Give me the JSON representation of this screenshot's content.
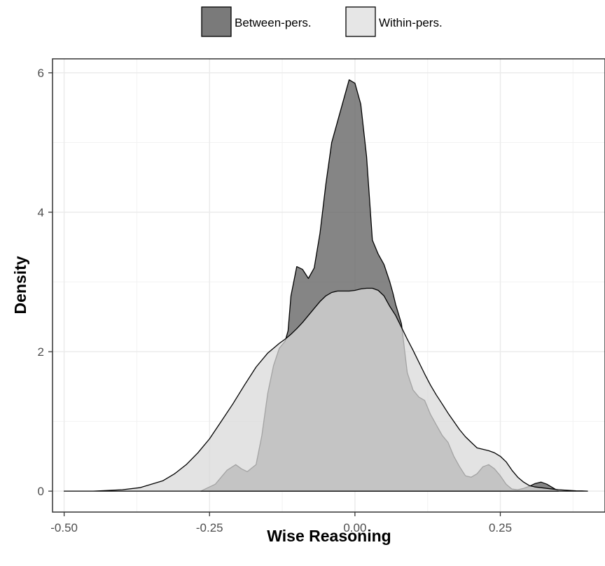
{
  "chart_data": {
    "type": "area",
    "title": "",
    "xlabel": "Wise Reasoning",
    "ylabel": "Density",
    "xlim": [
      -0.52,
      0.43
    ],
    "ylim": [
      -0.3,
      6.2
    ],
    "x_ticks": [
      -0.5,
      -0.25,
      0.0,
      0.25
    ],
    "x_tick_labels": [
      "-0.50",
      "-0.25",
      "0.00",
      "0.25"
    ],
    "y_ticks": [
      0,
      2,
      4,
      6
    ],
    "y_tick_labels": [
      "0",
      "2",
      "4",
      "6"
    ],
    "grid": true,
    "legend_position": "top",
    "series": [
      {
        "name": "Between-pers.",
        "color": "#666666",
        "opacity": 0.8,
        "x": [
          -0.265,
          -0.24,
          -0.22,
          -0.205,
          -0.195,
          -0.185,
          -0.17,
          -0.16,
          -0.15,
          -0.14,
          -0.13,
          -0.12,
          -0.115,
          -0.11,
          -0.1,
          -0.09,
          -0.08,
          -0.07,
          -0.06,
          -0.05,
          -0.04,
          -0.03,
          -0.02,
          -0.01,
          0.0,
          0.01,
          0.02,
          0.03,
          0.04,
          0.05,
          0.06,
          0.065,
          0.07,
          0.08,
          0.09,
          0.1,
          0.11,
          0.12,
          0.13,
          0.14,
          0.15,
          0.16,
          0.17,
          0.18,
          0.19,
          0.2,
          0.21,
          0.22,
          0.23,
          0.24,
          0.25,
          0.26,
          0.27,
          0.28,
          0.29,
          0.3,
          0.31,
          0.32,
          0.33,
          0.34,
          0.35
        ],
        "y": [
          0.0,
          0.1,
          0.3,
          0.38,
          0.32,
          0.28,
          0.38,
          0.8,
          1.4,
          1.8,
          2.05,
          2.15,
          2.3,
          2.8,
          3.22,
          3.18,
          3.05,
          3.2,
          3.7,
          4.4,
          5.0,
          5.3,
          5.6,
          5.9,
          5.85,
          5.55,
          4.8,
          3.6,
          3.4,
          3.25,
          3.0,
          2.85,
          2.68,
          2.4,
          1.7,
          1.45,
          1.35,
          1.3,
          1.1,
          0.95,
          0.8,
          0.7,
          0.5,
          0.35,
          0.22,
          0.2,
          0.25,
          0.35,
          0.38,
          0.32,
          0.22,
          0.1,
          0.03,
          0.02,
          0.04,
          0.07,
          0.11,
          0.13,
          0.1,
          0.05,
          0.0
        ]
      },
      {
        "name": "Within-pers.",
        "color": "#d9d9d9",
        "opacity": 0.75,
        "x": [
          -0.5,
          -0.45,
          -0.4,
          -0.37,
          -0.35,
          -0.33,
          -0.31,
          -0.29,
          -0.27,
          -0.25,
          -0.23,
          -0.21,
          -0.19,
          -0.17,
          -0.15,
          -0.13,
          -0.12,
          -0.11,
          -0.1,
          -0.09,
          -0.08,
          -0.07,
          -0.06,
          -0.05,
          -0.04,
          -0.03,
          -0.02,
          -0.01,
          0.0,
          0.01,
          0.02,
          0.03,
          0.04,
          0.05,
          0.06,
          0.07,
          0.08,
          0.09,
          0.1,
          0.11,
          0.12,
          0.13,
          0.14,
          0.15,
          0.16,
          0.17,
          0.18,
          0.19,
          0.2,
          0.21,
          0.22,
          0.23,
          0.24,
          0.25,
          0.26,
          0.27,
          0.28,
          0.29,
          0.3,
          0.31,
          0.32,
          0.33,
          0.34,
          0.35,
          0.36,
          0.37,
          0.38,
          0.39,
          0.4
        ],
        "y": [
          0.0,
          0.0,
          0.02,
          0.05,
          0.1,
          0.15,
          0.25,
          0.38,
          0.55,
          0.75,
          1.0,
          1.25,
          1.52,
          1.78,
          1.98,
          2.12,
          2.18,
          2.25,
          2.33,
          2.42,
          2.52,
          2.62,
          2.72,
          2.8,
          2.85,
          2.87,
          2.87,
          2.87,
          2.88,
          2.9,
          2.91,
          2.91,
          2.88,
          2.8,
          2.65,
          2.52,
          2.35,
          2.18,
          2.02,
          1.85,
          1.68,
          1.52,
          1.38,
          1.25,
          1.12,
          1.0,
          0.88,
          0.78,
          0.7,
          0.62,
          0.6,
          0.58,
          0.55,
          0.5,
          0.42,
          0.3,
          0.2,
          0.13,
          0.08,
          0.06,
          0.05,
          0.04,
          0.03,
          0.02,
          0.015,
          0.01,
          0.005,
          0.003,
          0.0
        ]
      }
    ]
  }
}
